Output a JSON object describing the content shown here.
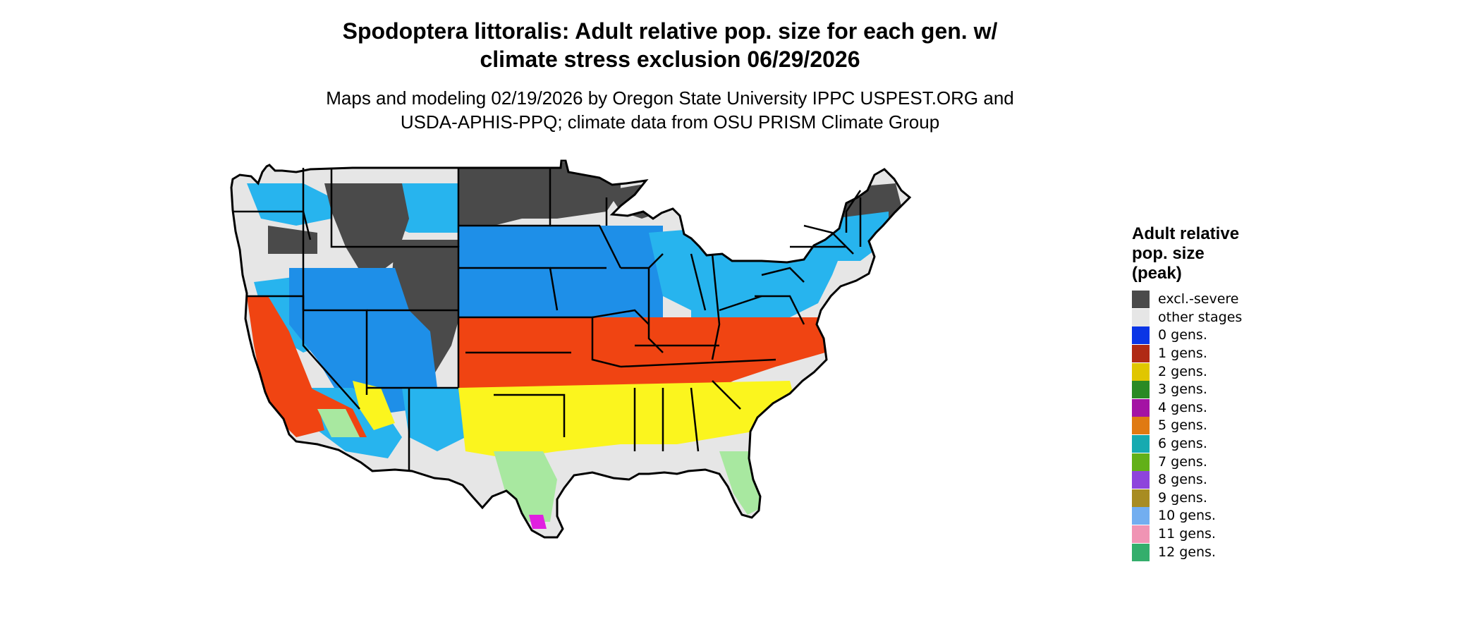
{
  "header": {
    "title_line1": "Spodoptera littoralis: Adult relative pop. size for each gen. w/",
    "title_line2": "climate stress exclusion 06/29/2026",
    "subtitle_line1": "Maps and modeling 02/19/2026 by Oregon State University IPPC USPEST.ORG and",
    "subtitle_line2": "USDA-APHIS-PPQ; climate data from OSU PRISM Climate Group"
  },
  "legend": {
    "title_line1": "Adult relative",
    "title_line2": "pop. size",
    "title_line3": "(peak)",
    "items": [
      {
        "label": "excl.-severe",
        "color": "#4a4a4a"
      },
      {
        "label": "other stages",
        "color": "#e6e6e6"
      },
      {
        "label": "0 gens.",
        "color": "#0a35e6"
      },
      {
        "label": "1 gens.",
        "color": "#b02a15"
      },
      {
        "label": "2 gens.",
        "color": "#e0c600"
      },
      {
        "label": "3 gens.",
        "color": "#2a8a24"
      },
      {
        "label": "4 gens.",
        "color": "#a412a4"
      },
      {
        "label": "5 gens.",
        "color": "#e07a12"
      },
      {
        "label": "6 gens.",
        "color": "#16aab0"
      },
      {
        "label": "7 gens.",
        "color": "#62b018"
      },
      {
        "label": "8 gens.",
        "color": "#8e44dc"
      },
      {
        "label": "9 gens.",
        "color": "#a88c22"
      },
      {
        "label": "10 gens.",
        "color": "#72aef0"
      },
      {
        "label": "11 gens.",
        "color": "#f094b4"
      },
      {
        "label": "12 gens.",
        "color": "#34ae6c"
      }
    ]
  },
  "map": {
    "colors": {
      "land": "#e6e6e6",
      "excluded": "#4a4a4a",
      "cyan": "#27b4ee",
      "blue": "#1e8fe8",
      "orange": "#f04412",
      "yellow": "#fbf51e",
      "lightgreen": "#a8e8a0",
      "magenta": "#e020e0",
      "border": "#000000"
    }
  }
}
